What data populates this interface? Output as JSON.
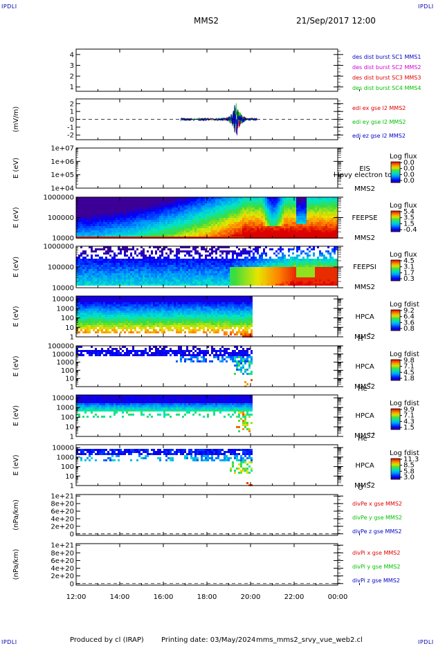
{
  "header": {
    "corner_label": "IPDLI",
    "spacecraft": "MMS2",
    "datetime": "21/Sep/2017 12:00"
  },
  "footer": {
    "produced_by": "Produced by cl (IRAP)",
    "printing_date": "Printing date: 03/May/2024",
    "script_name": "mms_mms2_srvy_vue_web2.cl"
  },
  "colors": {
    "mms1": "#0000c8",
    "mms2": "#d000d0",
    "mms3": "#e00000",
    "mms4": "#00c000",
    "x": "#e00000",
    "y": "#00c000",
    "z": "#0000c8"
  },
  "chart_data": {
    "type": "multi-panel time series / spectrogram stack",
    "x_axis": {
      "ticks": [
        "12:00",
        "14:00",
        "16:00",
        "18:00",
        "20:00",
        "22:00",
        "00:00"
      ],
      "start_hour": 12,
      "end_hour": 24
    },
    "panels": [
      {
        "id": "des-dist-burst",
        "kind": "line",
        "yticks": [
          "4",
          "3",
          "2",
          "1"
        ],
        "ytick_values": [
          4,
          3,
          2,
          1
        ],
        "ylim": [
          0.6,
          4.5
        ],
        "ylabel": "",
        "legend": [
          {
            "text": "des dist burst SC1 MMS1",
            "color": "#0000c8"
          },
          {
            "text": "des dist burst SC2 MMS2",
            "color": "#d000d0"
          },
          {
            "text": "des dist burst SC3 MMS3",
            "color": "#e00000"
          },
          {
            "text": "des dist burst SC4 MMS4",
            "color": "#00c000"
          }
        ]
      },
      {
        "id": "edi-e-gse",
        "kind": "line",
        "ylabel": "(mV/m)",
        "yticks": [
          "2",
          "1",
          "0",
          "-1",
          "-2"
        ],
        "ytick_values": [
          2,
          1,
          0,
          -1,
          -2
        ],
        "ylim": [
          -2.6,
          2.6
        ],
        "zero_line": true,
        "activity_window_hours": [
          16.8,
          20.3
        ],
        "series": [
          {
            "name": "edi ex gse l2 MMS2",
            "color": "#e00000"
          },
          {
            "name": "edi ey gse l2 MMS2",
            "color": "#00c000"
          },
          {
            "name": "edi ez gse l2 MMS2",
            "color": "#0000c8"
          }
        ]
      },
      {
        "id": "eis",
        "kind": "spectrogram",
        "ylabel": "E (eV)",
        "yticks": [
          "1e+07",
          "1e+06",
          "1e+05",
          "1e+04"
        ],
        "ytick_log": [
          7,
          6,
          5,
          4
        ],
        "ylim_log": [
          4,
          7
        ],
        "labels": [
          "EIS",
          "MMS2"
        ],
        "overlay_text": "l lpvy electron to",
        "colorbar": {
          "title": "Log flux",
          "ticks": [
            "0.0",
            "0.0",
            "0.0",
            "0.0"
          ]
        },
        "empty": true
      },
      {
        "id": "feeps-e",
        "kind": "spectrogram",
        "ylabel": "E (eV)",
        "yticks": [
          "1000000",
          "100000",
          "10000"
        ],
        "ytick_log": [
          6,
          5,
          4
        ],
        "ylim_log": [
          4,
          6
        ],
        "labels": [
          "FEEPSE",
          "MMS2"
        ],
        "data_hours": [
          12,
          24
        ],
        "colorbar": {
          "title": "Log flux",
          "ticks": [
            "5.4",
            "3.5",
            "1.5",
            "-0.4"
          ]
        }
      },
      {
        "id": "feeps-i",
        "kind": "spectrogram",
        "ylabel": "E (eV)",
        "yticks": [
          "1000000",
          "100000",
          "10000"
        ],
        "ytick_log": [
          6,
          5,
          4
        ],
        "ylim_log": [
          4,
          6
        ],
        "labels": [
          "FEEPSI",
          "MMS2"
        ],
        "data_hours": [
          12,
          24
        ],
        "colorbar": {
          "title": "Log flux",
          "ticks": [
            "4.5",
            "3.1",
            "1.7",
            "0.3"
          ]
        }
      },
      {
        "id": "hpca-h",
        "kind": "spectrogram",
        "ylabel": "E (eV)",
        "yticks": [
          "10000",
          "1000",
          "100",
          "10",
          "1"
        ],
        "ytick_log": [
          4,
          3,
          2,
          1,
          0
        ],
        "ylim_log": [
          0,
          4.3
        ],
        "labels": [
          "HPCA",
          "MMS2"
        ],
        "species": "H",
        "charge": "+",
        "data_hours": [
          12,
          20.05
        ],
        "colorbar": {
          "title": "Log fdist",
          "ticks": [
            "9.2",
            "6.4",
            "3.6",
            "0.8"
          ]
        }
      },
      {
        "id": "hpca-he1",
        "kind": "spectrogram",
        "ylabel": "E (eV)",
        "yticks": [
          "100000",
          "10000",
          "1000",
          "100",
          "10",
          "1"
        ],
        "ytick_log": [
          5,
          4,
          3,
          2,
          1,
          0
        ],
        "ylim_log": [
          0,
          5
        ],
        "labels": [
          "HPCA",
          "MMS2"
        ],
        "species": "He",
        "charge": "+",
        "data_hours": [
          12,
          20.05
        ],
        "colorbar": {
          "title": "Log fdist",
          "ticks": [
            "9.8",
            "7.1",
            "4.5",
            "1.8"
          ]
        }
      },
      {
        "id": "hpca-he2",
        "kind": "spectrogram",
        "ylabel": "E (eV)",
        "yticks": [
          "10000",
          "1000",
          "100",
          "10",
          "1"
        ],
        "ytick_log": [
          4,
          3,
          2,
          1,
          0
        ],
        "ylim_log": [
          0,
          4.3
        ],
        "labels": [
          "HPCA",
          "MMS2"
        ],
        "species": "He",
        "charge": "++",
        "data_hours": [
          12,
          20.05
        ],
        "colorbar": {
          "title": "Log fdist",
          "ticks": [
            "9.9",
            "7.1",
            "4.3",
            "1.5"
          ]
        }
      },
      {
        "id": "hpca-o",
        "kind": "spectrogram",
        "ylabel": "E (eV)",
        "yticks": [
          "10000",
          "1000",
          "100",
          "10",
          "1"
        ],
        "ytick_log": [
          4,
          3,
          2,
          1,
          0
        ],
        "ylim_log": [
          0,
          4.3
        ],
        "labels": [
          "HPCA",
          "MMS2"
        ],
        "species": "O",
        "charge": "+",
        "data_hours": [
          12,
          20.05
        ],
        "colorbar": {
          "title": "Log fdist",
          "ticks": [
            "11.3",
            "8.5",
            "5.8",
            "3.0"
          ]
        }
      },
      {
        "id": "divpe",
        "kind": "line",
        "ylabel": "(nPa/km)",
        "yticks": [
          "1e+21",
          "8e+20",
          "6e+20",
          "4e+20",
          "2e+20",
          "0"
        ],
        "ytick_values": [
          10,
          8,
          6,
          4,
          2,
          0
        ],
        "ylim": [
          -0.4,
          10.4
        ],
        "zero_line": true,
        "series": [
          {
            "name": "divPe x gse MMS2",
            "color": "#e00000"
          },
          {
            "name": "divPe y gse MMS2",
            "color": "#00c000"
          },
          {
            "name": "divPe z gse MMS2",
            "color": "#0000c8"
          }
        ]
      },
      {
        "id": "divpi",
        "kind": "line",
        "ylabel": "(nPa/km)",
        "yticks": [
          "1e+21",
          "8e+20",
          "6e+20",
          "4e+20",
          "2e+20",
          "0"
        ],
        "ytick_values": [
          10,
          8,
          6,
          4,
          2,
          0
        ],
        "ylim": [
          -0.4,
          10.4
        ],
        "zero_line": true,
        "series": [
          {
            "name": "divPi x gse MMS2",
            "color": "#e00000"
          },
          {
            "name": "divPi y gse MMS2",
            "color": "#00c000"
          },
          {
            "name": "divPi z gse MMS2",
            "color": "#0000c8"
          }
        ]
      }
    ]
  }
}
